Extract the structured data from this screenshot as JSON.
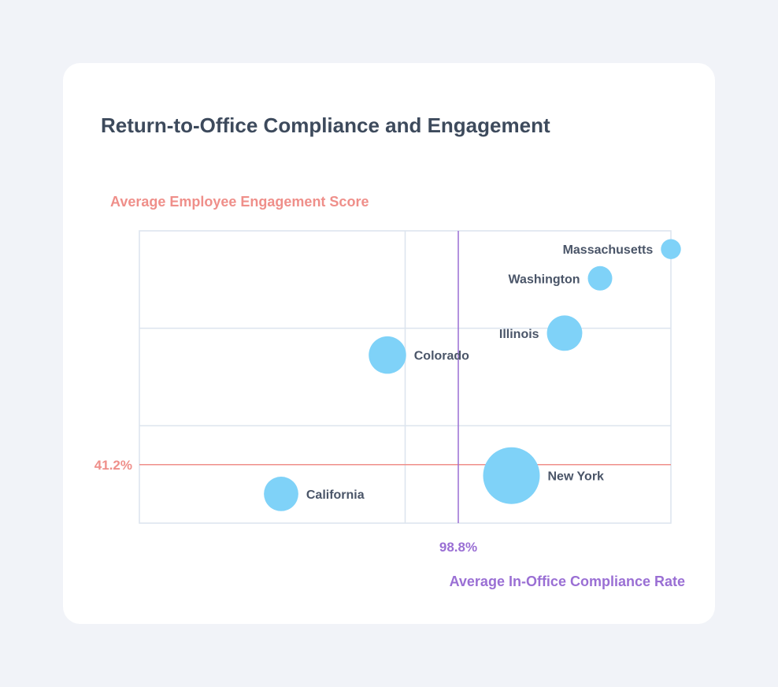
{
  "chart_data": {
    "type": "scatter",
    "title": "Return-to-Office Compliance and Engagement",
    "ylabel": "Average Employee Engagement Score",
    "xlabel": "Average In-Office Compliance Rate",
    "x_reference": {
      "label": "98.8%",
      "value": 98.8
    },
    "y_reference": {
      "label": "41.2%",
      "value": 41.2
    },
    "points": [
      {
        "name": "Massachusetts",
        "x": 100.0,
        "y": 47.1,
        "size": 0.05
      },
      {
        "name": "Washington",
        "x": 99.6,
        "y": 46.3,
        "size": 0.1
      },
      {
        "name": "Illinois",
        "x": 99.4,
        "y": 44.8,
        "size": 0.3
      },
      {
        "name": "Colorado",
        "x": 98.4,
        "y": 44.2,
        "size": 0.35
      },
      {
        "name": "New York",
        "x": 99.1,
        "y": 40.9,
        "size": 1.0
      },
      {
        "name": "California",
        "x": 97.8,
        "y": 40.4,
        "size": 0.28
      }
    ],
    "grid": true,
    "colors": {
      "point": "#7fd2f8",
      "grid": "#dce4ee",
      "y_reference": "#ef8f8a",
      "x_reference": "#9a6fd4",
      "ylabel": "#ef8f8a",
      "xlabel": "#9a6fd4",
      "point_label": "#4a5568"
    }
  }
}
